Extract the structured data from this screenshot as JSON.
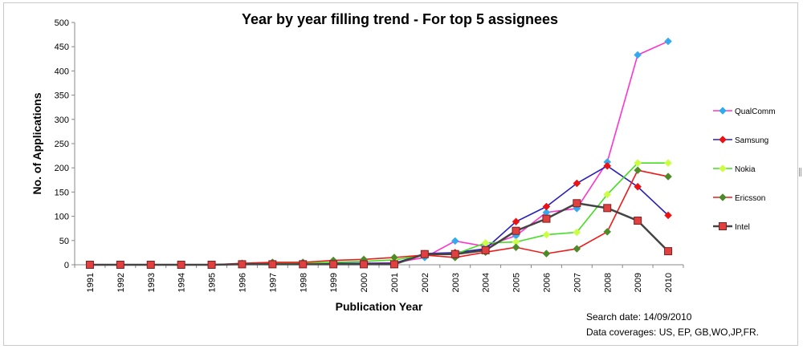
{
  "chart_data": {
    "type": "line",
    "title": "Year by year filling trend - For top 5 assignees",
    "xlabel": "Publication Year",
    "ylabel": "No. of Applications",
    "ylim": [
      0,
      500
    ],
    "yticks": [
      0,
      50,
      100,
      150,
      200,
      250,
      300,
      350,
      400,
      450,
      500
    ],
    "categories": [
      "1991",
      "1992",
      "1993",
      "1994",
      "1995",
      "1996",
      "1997",
      "1998",
      "1999",
      "2000",
      "2001",
      "2002",
      "2003",
      "2004",
      "2005",
      "2006",
      "2007",
      "2008",
      "2009",
      "2010"
    ],
    "grid": false,
    "legend_position": "right",
    "series": [
      {
        "name": "QualComm",
        "color": "#ff33cc",
        "marker_color": "#33aaee",
        "marker": "diamond",
        "values": [
          0,
          0,
          0,
          0,
          0,
          1,
          2,
          2,
          2,
          3,
          4,
          15,
          49,
          38,
          60,
          108,
          116,
          212,
          433,
          461
        ]
      },
      {
        "name": "Samsung",
        "color": "#2a1fb8",
        "marker_color": "#ee1111",
        "marker": "diamond",
        "values": [
          0,
          0,
          0,
          0,
          0,
          1,
          2,
          2,
          3,
          3,
          3,
          23,
          25,
          33,
          89,
          120,
          168,
          204,
          161,
          102
        ]
      },
      {
        "name": "Nokia",
        "color": "#44dd22",
        "marker_color": "#ccff44",
        "marker": "diamond",
        "values": [
          0,
          0,
          0,
          0,
          0,
          1,
          3,
          3,
          5,
          7,
          10,
          20,
          22,
          45,
          47,
          62,
          67,
          145,
          210,
          210
        ]
      },
      {
        "name": "Ericsson",
        "color": "#ee1a1a",
        "marker_color": "#4d8a2a",
        "marker": "diamond",
        "values": [
          0,
          0,
          0,
          0,
          0,
          3,
          5,
          5,
          9,
          11,
          15,
          20,
          15,
          26,
          36,
          23,
          33,
          68,
          195,
          182
        ]
      },
      {
        "name": "Intel",
        "color": "#444444",
        "marker_color": "#e04040",
        "marker": "square",
        "values": [
          0,
          0,
          0,
          0,
          0,
          1,
          1,
          1,
          1,
          1,
          1,
          22,
          22,
          30,
          70,
          95,
          127,
          117,
          91,
          28
        ]
      }
    ]
  },
  "notes": {
    "search_date": "Search date: 14/09/2010",
    "coverage": "Data coverages: US, EP, GB,WO,JP,FR."
  }
}
